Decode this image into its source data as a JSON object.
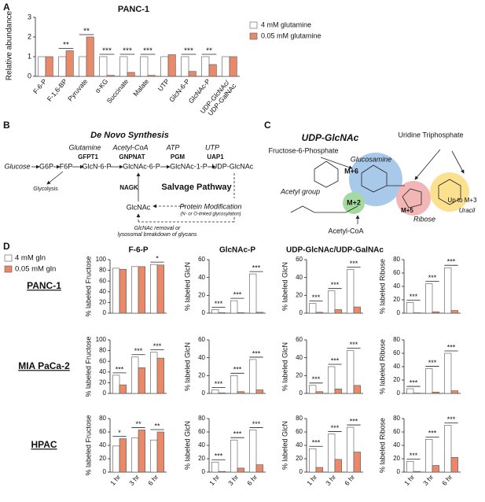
{
  "panel_labels": [
    "A",
    "B",
    "C",
    "D"
  ],
  "chart_data": [
    {
      "type": "bar",
      "title": "PANC-1",
      "y_label": "Relative abundance",
      "categories": [
        "F-6-P",
        "F-1,6-BP",
        "Pyruvate",
        "α-KG",
        "Succinate",
        "Malate",
        "UTP",
        "GlcN-6-P",
        "GlcNAc-P",
        "UDP-GlcNAc/ UDP-GalNAc"
      ],
      "series": [
        {
          "name": "4 mM glutamine",
          "color": "#ffffff",
          "values": [
            1.0,
            1.0,
            1.0,
            1.0,
            1.0,
            1.0,
            1.0,
            1.0,
            1.0,
            1.0
          ]
        },
        {
          "name": "0.05 mM glutamine",
          "color": "#e8896a",
          "values": [
            1.0,
            1.3,
            2.0,
            0.05,
            0.2,
            0.05,
            1.1,
            0.25,
            0.6,
            1.0
          ]
        }
      ],
      "significance": [
        null,
        "**",
        "**",
        "***",
        "***",
        "***",
        null,
        "***",
        "**",
        null
      ],
      "ylim": [
        0,
        3
      ],
      "yticks": [
        0,
        1,
        2,
        3
      ]
    },
    {
      "type": "bar-grid",
      "legend": [
        {
          "name": "4 mM gln",
          "color": "#ffffff"
        },
        {
          "name": "0.05 mM gln",
          "color": "#e8896a"
        }
      ],
      "categories": [
        "1 hr",
        "3 hr",
        "6 hr"
      ],
      "rows": [
        "PANC-1",
        "MIA PaCa-2",
        "HPAC"
      ],
      "columns": [
        "F-6-P",
        "GlcNAc-P",
        "UDP-GlcNAc/UDP-GalNAc"
      ],
      "y_labels": [
        "% labeled Fructose",
        "% labeled GlcN",
        "% labeled GlcN",
        "% labeled Ribose"
      ],
      "panels": [
        {
          "ylim": [
            0,
            100
          ],
          "yticks": [
            0,
            20,
            40,
            60,
            80,
            100
          ],
          "series": [
            {
              "values": [
                84,
                87,
                91
              ]
            },
            {
              "values": [
                82,
                87,
                90
              ]
            }
          ],
          "significance": [
            null,
            null,
            "*"
          ]
        },
        {
          "ylim": [
            0,
            60
          ],
          "yticks": [
            0,
            20,
            40,
            60
          ],
          "series": [
            {
              "values": [
                4,
                14,
                44
              ]
            },
            {
              "values": [
                0.5,
                0.5,
                1
              ]
            }
          ],
          "significance": [
            "***",
            "***",
            "***"
          ]
        },
        {
          "ylim": [
            0,
            60
          ],
          "yticks": [
            0,
            20,
            40,
            60
          ],
          "series": [
            {
              "values": [
                11,
                25,
                49
              ]
            },
            {
              "values": [
                1,
                4,
                7
              ]
            }
          ],
          "significance": [
            "***",
            "***",
            "***"
          ]
        },
        {
          "ylim": [
            0,
            80
          ],
          "yticks": [
            0,
            20,
            40,
            60,
            80
          ],
          "series": [
            {
              "values": [
                16,
                44,
                68
              ]
            },
            {
              "values": [
                0.5,
                2,
                4
              ]
            }
          ],
          "significance": [
            "***",
            "***",
            "***"
          ]
        },
        {
          "ylim": [
            0,
            100
          ],
          "yticks": [
            0,
            20,
            40,
            60,
            80,
            100
          ],
          "series": [
            {
              "values": [
                34,
                68,
                77
              ]
            },
            {
              "values": [
                16,
                48,
                66
              ]
            }
          ],
          "significance": [
            "***",
            "***",
            "***"
          ]
        },
        {
          "ylim": [
            0,
            60
          ],
          "yticks": [
            0,
            20,
            40,
            60
          ],
          "series": [
            {
              "values": [
                4,
                20,
                38
              ]
            },
            {
              "values": [
                0.5,
                2,
                4
              ]
            }
          ],
          "significance": [
            "***",
            "***",
            "***"
          ]
        },
        {
          "ylim": [
            0,
            60
          ],
          "yticks": [
            0,
            20,
            40,
            60
          ],
          "series": [
            {
              "values": [
                9,
                30,
                48
              ]
            },
            {
              "values": [
                2,
                5,
                9
              ]
            }
          ],
          "significance": [
            "***",
            "***",
            "***"
          ]
        },
        {
          "ylim": [
            0,
            80
          ],
          "yticks": [
            0,
            20,
            40,
            60,
            80
          ],
          "series": [
            {
              "values": [
                7,
                37,
                60
              ]
            },
            {
              "values": [
                0.5,
                2,
                4
              ]
            }
          ],
          "significance": [
            "***",
            "***",
            "***"
          ]
        },
        {
          "ylim": [
            0,
            80
          ],
          "yticks": [
            0,
            20,
            40,
            60,
            80
          ],
          "series": [
            {
              "values": [
                39,
                51,
                48
              ]
            },
            {
              "values": [
                50,
                63,
                60
              ]
            }
          ],
          "significance": [
            "*",
            "**",
            "**"
          ]
        },
        {
          "ylim": [
            0,
            80
          ],
          "yticks": [
            0,
            20,
            40,
            60,
            80
          ],
          "series": [
            {
              "values": [
                15,
                48,
                63
              ]
            },
            {
              "values": [
                1,
                6,
                11
              ]
            }
          ],
          "significance": [
            "***",
            "***",
            "***"
          ]
        },
        {
          "ylim": [
            0,
            80
          ],
          "yticks": [
            0,
            20,
            40,
            60,
            80
          ],
          "series": [
            {
              "values": [
                35,
                57,
                67
              ]
            },
            {
              "values": [
                7,
                19,
                30
              ]
            }
          ],
          "significance": [
            "***",
            "***",
            "***"
          ]
        },
        {
          "ylim": [
            0,
            80
          ],
          "yticks": [
            0,
            20,
            40,
            60,
            80
          ],
          "series": [
            {
              "values": [
                16,
                49,
                70
              ]
            },
            {
              "values": [
                1,
                10,
                22
              ]
            }
          ],
          "significance": [
            "***",
            "***",
            "***"
          ]
        }
      ]
    }
  ],
  "diagram_b": {
    "labels": [
      "De Novo Synthesis",
      "Glucose",
      "G6P",
      "F6P",
      "GlcN-6-P",
      "GlcNAc-6-P",
      "GlcNAc-1-P",
      "UDP-GlcNAc",
      "Glutamine",
      "Acetyl-CoA",
      "ATP",
      "UTP",
      "GFPT1",
      "GNPNAT",
      "PGM",
      "UAP1",
      "Glycolysis",
      "NAGK",
      "GlcNAc",
      "Salvage Pathway",
      "Protein Modification",
      "(N- or O-linked glycosylation)",
      "GlcNAc removal or",
      "lysosomal breakdown of glycans"
    ]
  },
  "diagram_c": {
    "labels": [
      "UDP-GlcNAc",
      "Uridine Triphosphate",
      "Fructose-6-Phosphate",
      "Glucosamine",
      "M+6",
      "Acetyl group",
      "M+2",
      "Acetyl-CoA",
      "M+5",
      "Ribose",
      "Up to M+3",
      "Uracil"
    ]
  }
}
